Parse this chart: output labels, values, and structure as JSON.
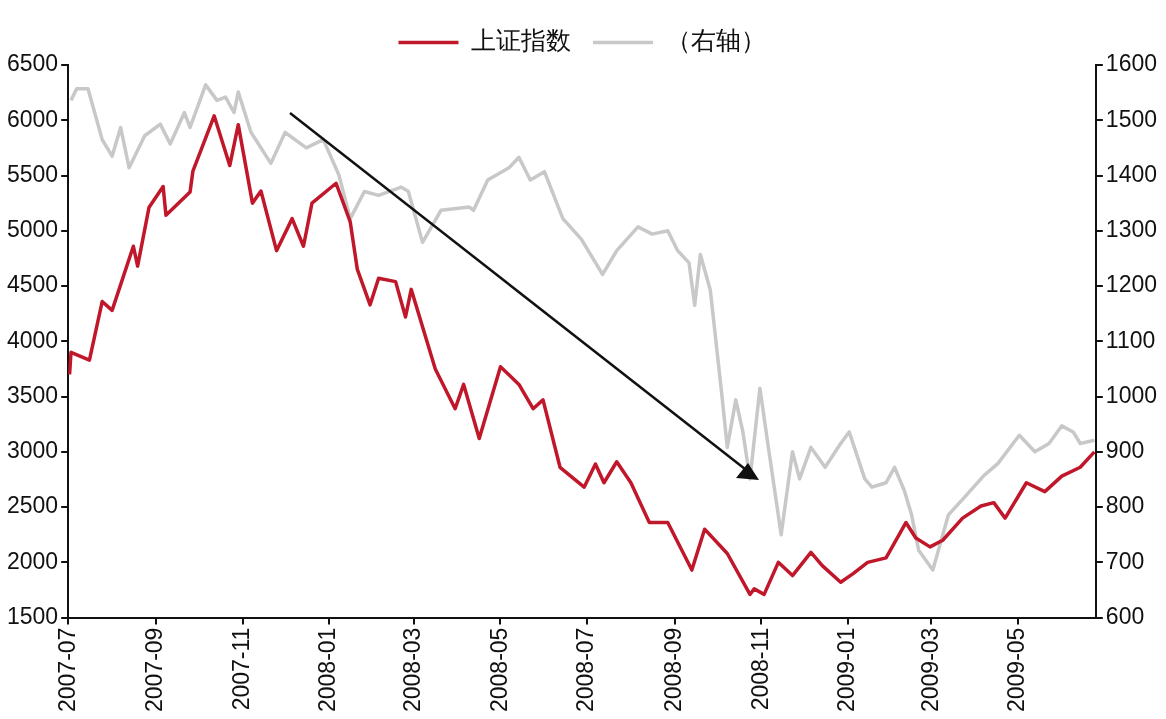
{
  "chart_data": {
    "type": "line",
    "legend": "top",
    "marker": "none",
    "xlim": [
      "2007-07-01",
      "2009-06-25"
    ],
    "xticks": [
      "2007-07",
      "2007-09",
      "2007-11",
      "2008-01",
      "2008-03",
      "2008-05",
      "2008-07",
      "2008-09",
      "2008-11",
      "2009-01",
      "2009-03",
      "2009-05"
    ],
    "ylim": [
      1500,
      6500
    ],
    "yticks": [
      1500,
      2000,
      2500,
      3000,
      3500,
      4000,
      4500,
      5000,
      5500,
      6000,
      6500
    ],
    "y2lim": [
      600,
      1600
    ],
    "y2ticks": [
      600,
      700,
      800,
      900,
      1000,
      1100,
      1200,
      1300,
      1400,
      1500,
      1600
    ],
    "series": [
      {
        "name": "上证指数",
        "color": "#c0182a",
        "x": [
          "2007-07-02",
          "2007-07-03",
          "2007-07-16",
          "2007-07-25",
          "2007-08-01",
          "2007-08-16",
          "2007-08-19",
          "2007-08-27",
          "2007-09-06",
          "2007-09-08",
          "2007-09-25",
          "2007-09-27",
          "2007-10-12",
          "2007-10-23",
          "2007-10-29",
          "2007-11-08",
          "2007-11-14",
          "2007-11-25",
          "2007-12-06",
          "2007-12-14",
          "2007-12-20",
          "2008-01-06",
          "2008-01-16",
          "2008-01-21",
          "2008-01-30",
          "2008-02-05",
          "2008-02-17",
          "2008-02-24",
          "2008-02-28",
          "2008-03-16",
          "2008-03-30",
          "2008-04-05",
          "2008-04-16",
          "2008-05-01",
          "2008-05-14",
          "2008-05-24",
          "2008-05-31",
          "2008-06-12",
          "2008-06-29",
          "2008-07-07",
          "2008-07-13",
          "2008-07-22",
          "2008-08-01",
          "2008-08-14",
          "2008-08-27",
          "2008-09-13",
          "2008-09-22",
          "2008-10-08",
          "2008-10-24",
          "2008-10-27",
          "2008-11-03",
          "2008-11-13",
          "2008-11-23",
          "2008-12-06",
          "2008-12-14",
          "2008-12-27",
          "2009-01-05",
          "2009-01-15",
          "2009-01-28",
          "2009-02-11",
          "2009-02-18",
          "2009-02-28",
          "2009-03-09",
          "2009-03-23",
          "2009-04-05",
          "2009-04-14",
          "2009-04-22",
          "2009-05-07",
          "2009-05-20",
          "2009-06-01",
          "2009-06-14",
          "2009-06-24"
        ],
        "values": [
          3700,
          3900,
          3830,
          4360,
          4280,
          4860,
          4680,
          5210,
          5400,
          5140,
          5350,
          5540,
          6040,
          5590,
          5960,
          5250,
          5360,
          4820,
          5110,
          4860,
          5250,
          5430,
          5080,
          4650,
          4330,
          4570,
          4540,
          4220,
          4470,
          3750,
          3390,
          3610,
          3120,
          3770,
          3610,
          3390,
          3470,
          2860,
          2680,
          2890,
          2720,
          2910,
          2720,
          2360,
          2360,
          1930,
          2300,
          2080,
          1710,
          1760,
          1710,
          2000,
          1880,
          2090,
          1970,
          1820,
          1900,
          2000,
          2040,
          2360,
          2220,
          2140,
          2200,
          2400,
          2510,
          2540,
          2400,
          2720,
          2640,
          2780,
          2860,
          3000
        ]
      },
      {
        "name": "（右轴）",
        "color": "#c8c8c8",
        "axis": "y2",
        "x": [
          "2007-07-03",
          "2007-07-07",
          "2007-07-15",
          "2007-07-25",
          "2007-08-01",
          "2007-08-07",
          "2007-08-13",
          "2007-08-24",
          "2007-09-04",
          "2007-09-11",
          "2007-09-21",
          "2007-09-25",
          "2007-10-06",
          "2007-10-14",
          "2007-10-20",
          "2007-10-26",
          "2007-10-29",
          "2007-11-07",
          "2007-11-21",
          "2007-12-01",
          "2007-12-16",
          "2007-12-28",
          "2008-01-08",
          "2008-01-16",
          "2008-01-26",
          "2008-02-05",
          "2008-02-21",
          "2008-02-26",
          "2008-03-07",
          "2008-03-20",
          "2008-04-09",
          "2008-04-12",
          "2008-04-22",
          "2008-05-07",
          "2008-05-14",
          "2008-05-22",
          "2008-06-01",
          "2008-06-14",
          "2008-06-27",
          "2008-07-12",
          "2008-07-22",
          "2008-08-06",
          "2008-08-16",
          "2008-08-27",
          "2008-09-03",
          "2008-09-11",
          "2008-09-15",
          "2008-09-19",
          "2008-09-26",
          "2008-10-04",
          "2008-10-08",
          "2008-10-14",
          "2008-10-19",
          "2008-10-24",
          "2008-10-31",
          "2008-11-06",
          "2008-11-15",
          "2008-11-23",
          "2008-11-28",
          "2008-12-06",
          "2008-12-16",
          "2008-12-27",
          "2009-01-02",
          "2009-01-13",
          "2009-01-18",
          "2009-01-28",
          "2009-02-03",
          "2009-02-10",
          "2009-02-15",
          "2009-02-20",
          "2009-03-02",
          "2009-03-13",
          "2009-03-23",
          "2009-04-07",
          "2009-04-17",
          "2009-05-02",
          "2009-05-13",
          "2009-05-23",
          "2009-06-01",
          "2009-06-09",
          "2009-06-14",
          "2009-06-24"
        ],
        "values": [
          1536,
          1557,
          1557,
          1465,
          1435,
          1487,
          1414,
          1472,
          1493,
          1457,
          1514,
          1487,
          1564,
          1536,
          1542,
          1514,
          1551,
          1478,
          1422,
          1478,
          1450,
          1465,
          1401,
          1322,
          1371,
          1364,
          1379,
          1371,
          1279,
          1337,
          1343,
          1337,
          1392,
          1414,
          1433,
          1392,
          1407,
          1322,
          1285,
          1221,
          1264,
          1307,
          1294,
          1300,
          1264,
          1242,
          1165,
          1257,
          1193,
          1007,
          908,
          994,
          936,
          851,
          1015,
          908,
          750,
          900,
          851,
          908,
          872,
          915,
          936,
          851,
          836,
          844,
          872,
          829,
          786,
          722,
          686,
          786,
          814,
          857,
          879,
          930,
          900,
          915,
          947,
          936,
          915,
          921
        ]
      }
    ]
  }
}
